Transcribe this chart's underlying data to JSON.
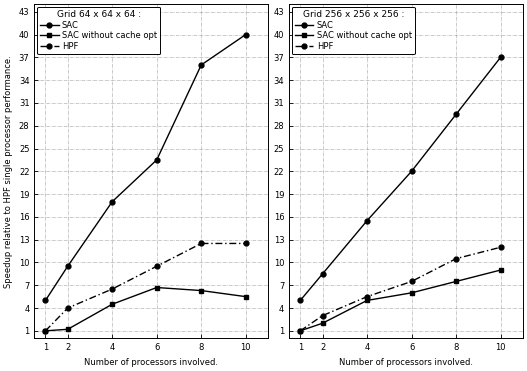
{
  "left": {
    "title": "Grid 64 x 64 x 64 :",
    "x": [
      1,
      2,
      4,
      6,
      8,
      10
    ],
    "sac": [
      5.0,
      9.5,
      18.0,
      23.5,
      36.0,
      40.0
    ],
    "sac_no_cache": [
      1.0,
      1.2,
      4.5,
      6.7,
      6.3,
      5.5
    ],
    "hpf": [
      1.0,
      4.0,
      6.5,
      9.5,
      12.5,
      12.5
    ]
  },
  "right": {
    "title": "Grid 256 x 256 x 256 :",
    "x": [
      1,
      2,
      4,
      6,
      8,
      10
    ],
    "sac": [
      5.0,
      8.5,
      15.5,
      22.0,
      29.5,
      37.0
    ],
    "sac_no_cache": [
      1.0,
      2.0,
      5.0,
      6.0,
      7.5,
      9.0
    ],
    "hpf": [
      1.0,
      3.0,
      5.5,
      7.5,
      10.5,
      12.0
    ]
  },
  "ylabel": "Speedup relative to HPF single processor performance.",
  "xlabel": "Number of processors involved.",
  "yticks": [
    1,
    4,
    7,
    10,
    13,
    16,
    19,
    22,
    25,
    28,
    31,
    34,
    37,
    40,
    43
  ],
  "xticks": [
    1,
    2,
    4,
    6,
    8,
    10
  ],
  "ylim": [
    0,
    44
  ],
  "xlim": [
    0.5,
    11
  ],
  "legend_labels": [
    "SAC",
    "SAC without cache opt",
    "HPF"
  ],
  "line_color": "#000000",
  "bg_color": "#ffffff",
  "grid_color": "#999999",
  "tick_fontsize": 6,
  "label_fontsize": 6,
  "legend_fontsize": 6,
  "title_fontsize": 6.5
}
